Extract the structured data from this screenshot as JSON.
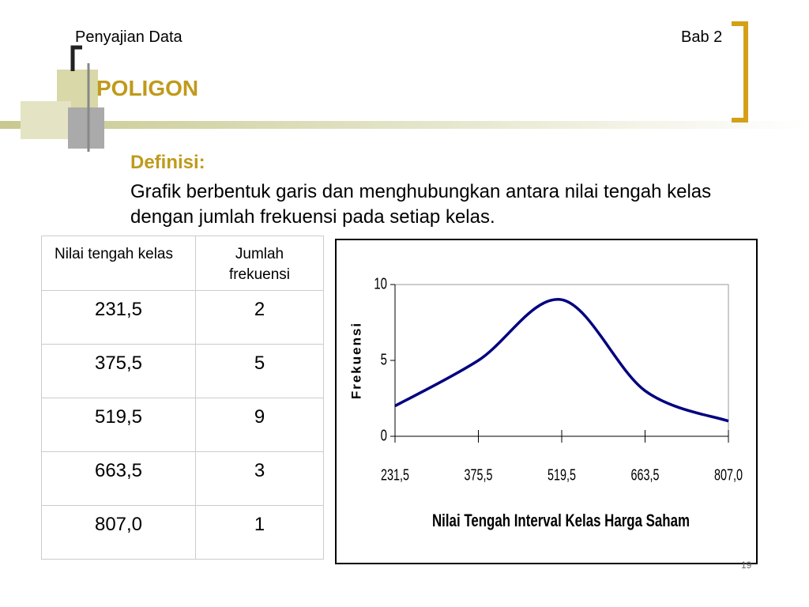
{
  "header": {
    "left": "Penyajian Data",
    "right": "Bab 2",
    "title": "POLIGON"
  },
  "definition": {
    "heading": "Definisi:",
    "text": "Grafik berbentuk garis dan menghubungkan antara nilai tengah kelas dengan jumlah frekuensi pada setiap kelas."
  },
  "table": {
    "header": [
      "Nilai tengah kelas",
      "Jumlah frekuensi"
    ],
    "rows": [
      [
        "231,5",
        "2"
      ],
      [
        "375,5",
        "5"
      ],
      [
        "519,5",
        "9"
      ],
      [
        "663,5",
        "3"
      ],
      [
        "807,0",
        "1"
      ]
    ]
  },
  "chart_data": {
    "type": "line",
    "categories": [
      "231,5",
      "375,5",
      "519,5",
      "663,5",
      "807,0"
    ],
    "series": [
      {
        "name": "Frekuensi",
        "color": "#000080",
        "values": [
          2,
          5,
          9,
          3,
          1
        ]
      }
    ],
    "ylim": [
      0,
      10
    ],
    "yticks": [
      0,
      5,
      10
    ],
    "y_label": "Frekuensi",
    "x_label": "Nilai Tengah Interval Kelas Harga Saham",
    "smooth": true
  },
  "footer": {
    "page": "19"
  }
}
